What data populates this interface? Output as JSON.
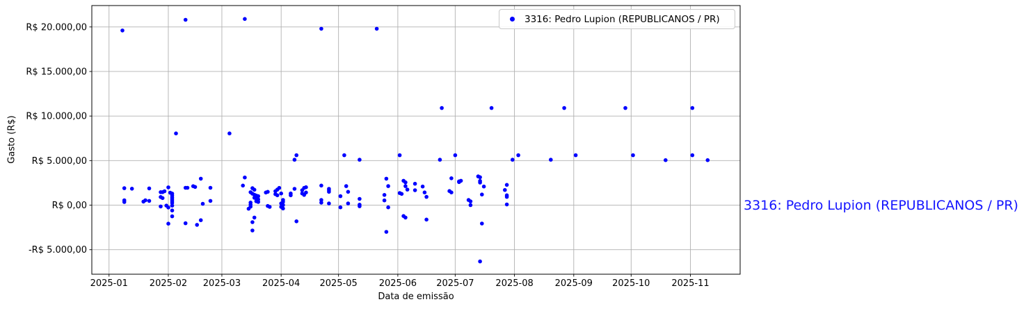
{
  "chart_data": {
    "type": "scatter",
    "title": "",
    "xlabel": "Data de emissão",
    "ylabel": "Gasto (R$)",
    "grid": true,
    "legend_position": "upper right",
    "xlim": [
      "2024-12-23",
      "2025-11-27"
    ],
    "ylim": [
      -7750,
      22400
    ],
    "x_ticks": [
      {
        "date": "2025-01-01",
        "label": "2025-01"
      },
      {
        "date": "2025-02-01",
        "label": "2025-02"
      },
      {
        "date": "2025-03-01",
        "label": "2025-03"
      },
      {
        "date": "2025-04-01",
        "label": "2025-04"
      },
      {
        "date": "2025-05-01",
        "label": "2025-05"
      },
      {
        "date": "2025-06-01",
        "label": "2025-06"
      },
      {
        "date": "2025-07-01",
        "label": "2025-07"
      },
      {
        "date": "2025-08-01",
        "label": "2025-08"
      },
      {
        "date": "2025-09-01",
        "label": "2025-09"
      },
      {
        "date": "2025-10-01",
        "label": "2025-10"
      },
      {
        "date": "2025-11-01",
        "label": "2025-11"
      }
    ],
    "y_ticks": [
      {
        "v": 20000,
        "label": "R$ 20.000,00"
      },
      {
        "v": 15000,
        "label": "R$ 15.000,00"
      },
      {
        "v": 10000,
        "label": "R$ 10.000,00"
      },
      {
        "v": 5000,
        "label": "R$ 5.000,00"
      },
      {
        "v": 0,
        "label": "R$ 0,00"
      },
      {
        "v": -5000,
        "label": "-R$ 5.000,00"
      }
    ],
    "legend": {
      "entries": [
        {
          "label": "3316: Pedro Lupion (REPUBLICANOS / PR)",
          "color": "#0000ff",
          "marker": "dot"
        }
      ]
    },
    "series": [
      {
        "name": "3316: Pedro Lupion (REPUBLICANOS / PR)",
        "color": "#0000ff",
        "marker": "circle",
        "points": [
          [
            "2025-01-08",
            19600
          ],
          [
            "2025-02-10",
            20800
          ],
          [
            "2025-03-13",
            20900
          ],
          [
            "2025-04-22",
            19800
          ],
          [
            "2025-05-21",
            19800
          ],
          [
            "2025-06-24",
            10900
          ],
          [
            "2025-07-20",
            10900
          ],
          [
            "2025-08-27",
            10900
          ],
          [
            "2025-09-28",
            10900
          ],
          [
            "2025-11-02",
            10900
          ],
          [
            "2025-02-05",
            8050
          ],
          [
            "2025-03-05",
            8050
          ],
          [
            "2025-04-08",
            5100
          ],
          [
            "2025-04-09",
            5600
          ],
          [
            "2025-05-04",
            5600
          ],
          [
            "2025-05-12",
            5100
          ],
          [
            "2025-06-02",
            5600
          ],
          [
            "2025-06-23",
            5100
          ],
          [
            "2025-07-01",
            5600
          ],
          [
            "2025-07-31",
            5100
          ],
          [
            "2025-08-03",
            5600
          ],
          [
            "2025-08-20",
            5100
          ],
          [
            "2025-09-02",
            5600
          ],
          [
            "2025-10-02",
            5600
          ],
          [
            "2025-10-19",
            5050
          ],
          [
            "2025-11-02",
            5600
          ],
          [
            "2025-11-10",
            5050
          ],
          [
            "2025-01-09",
            1900
          ],
          [
            "2025-01-09",
            550
          ],
          [
            "2025-01-09",
            350
          ],
          [
            "2025-01-13",
            1850
          ],
          [
            "2025-01-19",
            400
          ],
          [
            "2025-01-20",
            550
          ],
          [
            "2025-01-22",
            1880
          ],
          [
            "2025-01-22",
            480
          ],
          [
            "2025-01-28",
            1460
          ],
          [
            "2025-01-28",
            910
          ],
          [
            "2025-01-29",
            1460
          ],
          [
            "2025-01-29",
            800
          ],
          [
            "2025-01-28",
            -150
          ],
          [
            "2025-01-30",
            1560
          ],
          [
            "2025-01-31",
            -50
          ],
          [
            "2025-02-01",
            2000
          ],
          [
            "2025-02-02",
            1400
          ],
          [
            "2025-02-01",
            -260
          ],
          [
            "2025-02-01",
            -2080
          ],
          [
            "2025-02-03",
            1300
          ],
          [
            "2025-02-03",
            1090
          ],
          [
            "2025-02-03",
            880
          ],
          [
            "2025-02-03",
            670
          ],
          [
            "2025-02-03",
            460
          ],
          [
            "2025-02-03",
            260
          ],
          [
            "2025-02-03",
            -50
          ],
          [
            "2025-02-03",
            -600
          ],
          [
            "2025-02-03",
            -1250
          ],
          [
            "2025-02-10",
            1950
          ],
          [
            "2025-02-11",
            1950
          ],
          [
            "2025-02-10",
            -2030
          ],
          [
            "2025-02-14",
            2130
          ],
          [
            "2025-02-15",
            2040
          ],
          [
            "2025-02-16",
            -2210
          ],
          [
            "2025-02-18",
            2970
          ],
          [
            "2025-02-18",
            -1690
          ],
          [
            "2025-02-19",
            150
          ],
          [
            "2025-02-23",
            1950
          ],
          [
            "2025-02-23",
            480
          ],
          [
            "2025-03-12",
            2200
          ],
          [
            "2025-03-13",
            3100
          ],
          [
            "2025-03-15",
            -400
          ],
          [
            "2025-03-16",
            1450
          ],
          [
            "2025-03-16",
            290
          ],
          [
            "2025-03-16",
            60
          ],
          [
            "2025-03-16",
            -170
          ],
          [
            "2025-03-17",
            1900
          ],
          [
            "2025-03-17",
            1290
          ],
          [
            "2025-03-17",
            -1910
          ],
          [
            "2025-03-17",
            -2840
          ],
          [
            "2025-03-18",
            1730
          ],
          [
            "2025-03-18",
            1160
          ],
          [
            "2025-03-18",
            830
          ],
          [
            "2025-03-18",
            -1390
          ],
          [
            "2025-03-19",
            1080
          ],
          [
            "2025-03-19",
            750
          ],
          [
            "2025-03-19",
            440
          ],
          [
            "2025-03-20",
            1010
          ],
          [
            "2025-03-20",
            650
          ],
          [
            "2025-03-20",
            360
          ],
          [
            "2025-03-24",
            1420
          ],
          [
            "2025-03-25",
            1500
          ],
          [
            "2025-03-25",
            -90
          ],
          [
            "2025-03-26",
            -190
          ],
          [
            "2025-03-29",
            1570
          ],
          [
            "2025-03-29",
            1230
          ],
          [
            "2025-03-30",
            1750
          ],
          [
            "2025-03-30",
            1110
          ],
          [
            "2025-03-31",
            1930
          ],
          [
            "2025-04-01",
            1310
          ],
          [
            "2025-04-01",
            190
          ],
          [
            "2025-04-01",
            -190
          ],
          [
            "2025-04-02",
            580
          ],
          [
            "2025-04-02",
            370
          ],
          [
            "2025-04-02",
            20
          ],
          [
            "2025-04-02",
            -370
          ],
          [
            "2025-04-06",
            1110
          ],
          [
            "2025-04-06",
            1310
          ],
          [
            "2025-04-08",
            1830
          ],
          [
            "2025-04-09",
            -1810
          ],
          [
            "2025-04-12",
            1680
          ],
          [
            "2025-04-12",
            1310
          ],
          [
            "2025-04-13",
            1930
          ],
          [
            "2025-04-13",
            1150
          ],
          [
            "2025-04-14",
            1420
          ],
          [
            "2025-04-14",
            2010
          ],
          [
            "2025-04-22",
            2200
          ],
          [
            "2025-04-22",
            580
          ],
          [
            "2025-04-22",
            280
          ],
          [
            "2025-04-26",
            1830
          ],
          [
            "2025-04-26",
            1680
          ],
          [
            "2025-04-26",
            1500
          ],
          [
            "2025-04-26",
            190
          ],
          [
            "2025-05-02",
            1010
          ],
          [
            "2025-05-02",
            -250
          ],
          [
            "2025-05-05",
            2140
          ],
          [
            "2025-05-06",
            1500
          ],
          [
            "2025-05-06",
            190
          ],
          [
            "2025-05-12",
            700
          ],
          [
            "2025-05-12",
            60
          ],
          [
            "2025-05-12",
            -120
          ],
          [
            "2025-05-25",
            1150
          ],
          [
            "2025-05-25",
            530
          ],
          [
            "2025-05-26",
            2970
          ],
          [
            "2025-05-26",
            -3000
          ],
          [
            "2025-05-27",
            2140
          ],
          [
            "2025-05-27",
            -250
          ],
          [
            "2025-06-02",
            1360
          ],
          [
            "2025-06-03",
            1260
          ],
          [
            "2025-06-04",
            2740
          ],
          [
            "2025-06-04",
            -1220
          ],
          [
            "2025-06-05",
            2560
          ],
          [
            "2025-06-05",
            2140
          ],
          [
            "2025-06-05",
            -1390
          ],
          [
            "2025-06-06",
            1750
          ],
          [
            "2025-06-10",
            2400
          ],
          [
            "2025-06-10",
            1680
          ],
          [
            "2025-06-14",
            2090
          ],
          [
            "2025-06-15",
            1430
          ],
          [
            "2025-06-16",
            930
          ],
          [
            "2025-06-16",
            -1620
          ],
          [
            "2025-06-28",
            1580
          ],
          [
            "2025-06-29",
            1430
          ],
          [
            "2025-06-29",
            3020
          ],
          [
            "2025-07-03",
            2670
          ],
          [
            "2025-07-03",
            2590
          ],
          [
            "2025-07-04",
            2740
          ],
          [
            "2025-07-08",
            580
          ],
          [
            "2025-07-09",
            420
          ],
          [
            "2025-07-09",
            0
          ],
          [
            "2025-07-13",
            3230
          ],
          [
            "2025-07-14",
            3130
          ],
          [
            "2025-07-14",
            2710
          ],
          [
            "2025-07-14",
            2530
          ],
          [
            "2025-07-14",
            -6320
          ],
          [
            "2025-07-15",
            1190
          ],
          [
            "2025-07-15",
            -2060
          ],
          [
            "2025-07-16",
            2090
          ],
          [
            "2025-07-27",
            1700
          ],
          [
            "2025-07-28",
            2280
          ],
          [
            "2025-07-28",
            1110
          ],
          [
            "2025-07-28",
            930
          ],
          [
            "2025-07-28",
            80
          ]
        ]
      }
    ]
  },
  "side_label": {
    "text": "3316: Pedro Lupion (REPUBLICANOS / PR)",
    "color": "#1414ff"
  },
  "colors": {
    "background": "#ffffff",
    "grid": "#b0b0b0",
    "spine": "#000000",
    "tick_text": "#000000",
    "point": "#0000ff"
  }
}
